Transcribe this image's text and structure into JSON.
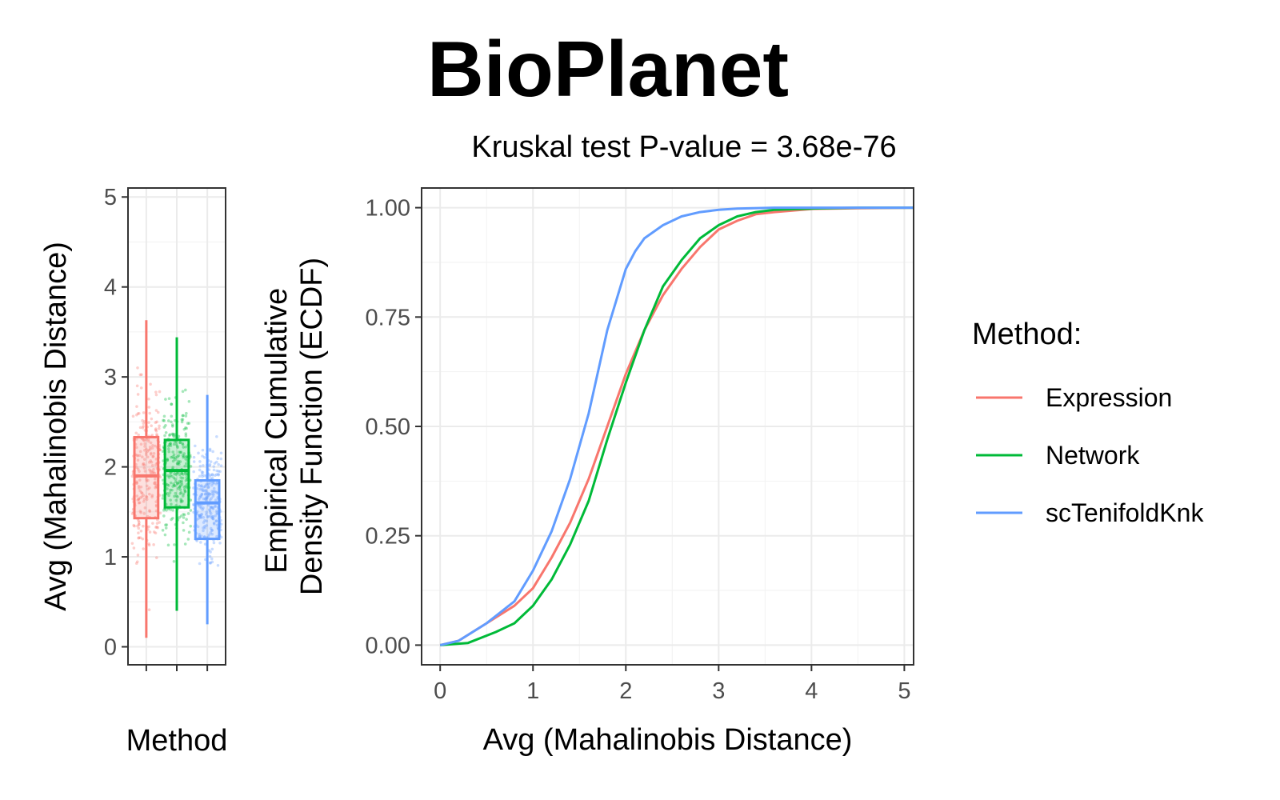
{
  "title": "BioPlanet",
  "subtitle": "Kruskal test P-value = 3.68e-76",
  "legend": {
    "title": "Method:",
    "placement": "right",
    "items": [
      {
        "label": "Expression",
        "color": "#F8766D"
      },
      {
        "label": "Network",
        "color": "#00BA38"
      },
      {
        "label": "scTenifoldKnk",
        "color": "#619CFF"
      }
    ]
  },
  "chart_data": [
    {
      "type": "box",
      "xlabel": "Method",
      "ylabel": "Avg (Mahalinobis Distance)",
      "ylim": [
        -0.2,
        5.1
      ],
      "yticks": [
        0,
        1,
        2,
        3,
        4,
        5
      ],
      "grid": true,
      "categories": [
        "Expression",
        "Network",
        "scTenifoldKnk"
      ],
      "series": [
        {
          "name": "Expression",
          "color": "#F8766D",
          "whisker_low": 0.1,
          "q1": 1.43,
          "median": 1.9,
          "q3": 2.33,
          "whisker_high": 3.63
        },
        {
          "name": "Network",
          "color": "#00BA38",
          "whisker_low": 0.4,
          "q1": 1.55,
          "median": 1.96,
          "q3": 2.3,
          "whisker_high": 3.44
        },
        {
          "name": "scTenifoldKnk",
          "color": "#619CFF",
          "whisker_low": 0.25,
          "q1": 1.2,
          "median": 1.6,
          "q3": 1.85,
          "whisker_high": 2.8
        }
      ]
    },
    {
      "type": "line",
      "xlabel": "Avg (Mahalinobis Distance)",
      "ylabel_lines": [
        "Empirical Cumulative",
        "Density Function (ECDF)"
      ],
      "xlim": [
        -0.2,
        5.1
      ],
      "ylim": [
        -0.045,
        1.045
      ],
      "xticks": [
        0,
        1,
        2,
        3,
        4,
        5
      ],
      "yticks": [
        "0.00",
        "0.25",
        "0.50",
        "0.75",
        "1.00"
      ],
      "grid": true,
      "series": [
        {
          "name": "Expression",
          "color": "#F8766D",
          "x": [
            0,
            0.2,
            0.5,
            0.8,
            1.0,
            1.2,
            1.4,
            1.6,
            1.8,
            2.0,
            2.2,
            2.4,
            2.6,
            2.8,
            3.0,
            3.2,
            3.4,
            3.6,
            4.0,
            4.5,
            5.1
          ],
          "y": [
            0,
            0.01,
            0.05,
            0.09,
            0.13,
            0.2,
            0.28,
            0.38,
            0.5,
            0.62,
            0.72,
            0.8,
            0.86,
            0.91,
            0.95,
            0.97,
            0.985,
            0.99,
            0.997,
            0.999,
            1.0
          ]
        },
        {
          "name": "Network",
          "color": "#00BA38",
          "x": [
            0,
            0.3,
            0.6,
            0.8,
            1.0,
            1.2,
            1.4,
            1.6,
            1.8,
            2.0,
            2.2,
            2.4,
            2.6,
            2.8,
            3.0,
            3.2,
            3.4,
            3.6,
            4.0,
            4.5,
            5.1
          ],
          "y": [
            0,
            0.005,
            0.03,
            0.05,
            0.09,
            0.15,
            0.23,
            0.33,
            0.47,
            0.6,
            0.72,
            0.82,
            0.88,
            0.93,
            0.96,
            0.98,
            0.99,
            0.995,
            0.998,
            1.0,
            1.0
          ]
        },
        {
          "name": "scTenifoldKnk",
          "color": "#619CFF",
          "x": [
            0,
            0.2,
            0.5,
            0.8,
            1.0,
            1.2,
            1.4,
            1.6,
            1.8,
            2.0,
            2.1,
            2.2,
            2.4,
            2.6,
            2.8,
            3.0,
            3.2,
            3.6,
            4.0,
            5.1
          ],
          "y": [
            0,
            0.01,
            0.05,
            0.1,
            0.17,
            0.26,
            0.38,
            0.53,
            0.72,
            0.86,
            0.9,
            0.93,
            0.96,
            0.98,
            0.99,
            0.995,
            0.998,
            1.0,
            1.0,
            1.0
          ]
        }
      ]
    }
  ]
}
